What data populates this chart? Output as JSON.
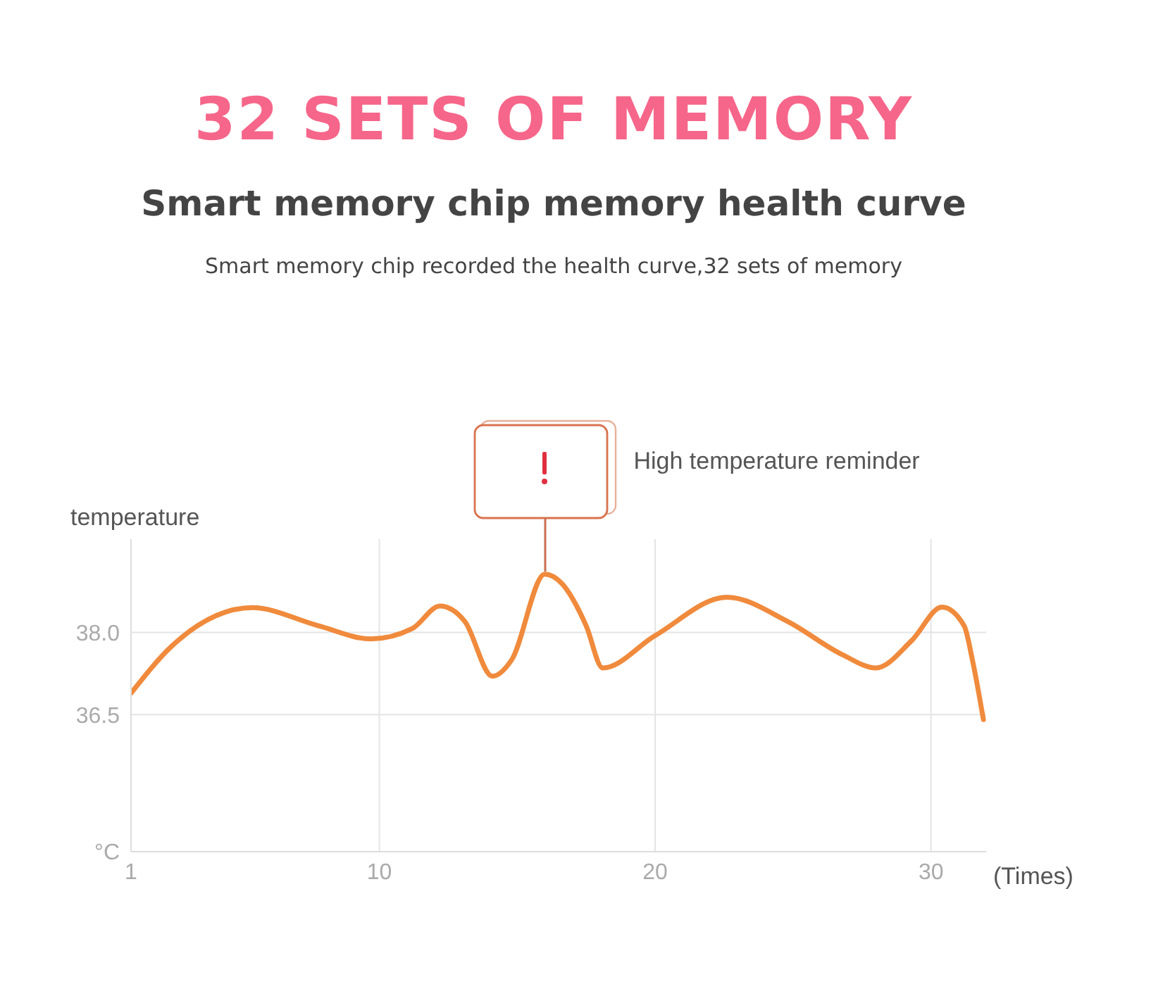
{
  "chart_data": {
    "type": "line",
    "title": "32 SETS OF MEMORY",
    "subtitle": "Smart memory chip memory health curve",
    "ylabel": "temperature",
    "xlabel": "(Times)",
    "annotations": [
      "Smart memory chip recorded the health curve,32 sets of memory",
      "High temperature reminder"
    ],
    "series": [
      {
        "color": "#f08a3c",
        "x": [
          1,
          2.5,
          5.4,
          7.8,
          9.7,
          11.2,
          12.2,
          13.1,
          14.1,
          14.8,
          16.0,
          16.6,
          17.5,
          18.1,
          20.0,
          22.6,
          24.8,
          26.8,
          28.0,
          29.3,
          30.4,
          31.2,
          31.5,
          31.9
        ],
        "values": [
          36.89,
          37.76,
          38.45,
          38.12,
          37.88,
          38.07,
          38.48,
          38.2,
          37.2,
          37.5,
          39.06,
          38.9,
          38.12,
          37.35,
          37.94,
          38.64,
          38.2,
          37.59,
          37.35,
          37.85,
          38.46,
          38.12,
          37.5,
          36.41
        ]
      }
    ],
    "xlim": [
      1,
      32
    ],
    "xticks": [
      1,
      10,
      20,
      30
    ],
    "ylim": [
      34,
      39.7
    ],
    "yticks": [
      {
        "value": 34,
        "label": "°C"
      },
      36.5,
      {
        "value": 38,
        "label": "38.0"
      }
    ],
    "grid": true,
    "marker": "none",
    "line_style": "solid"
  }
}
